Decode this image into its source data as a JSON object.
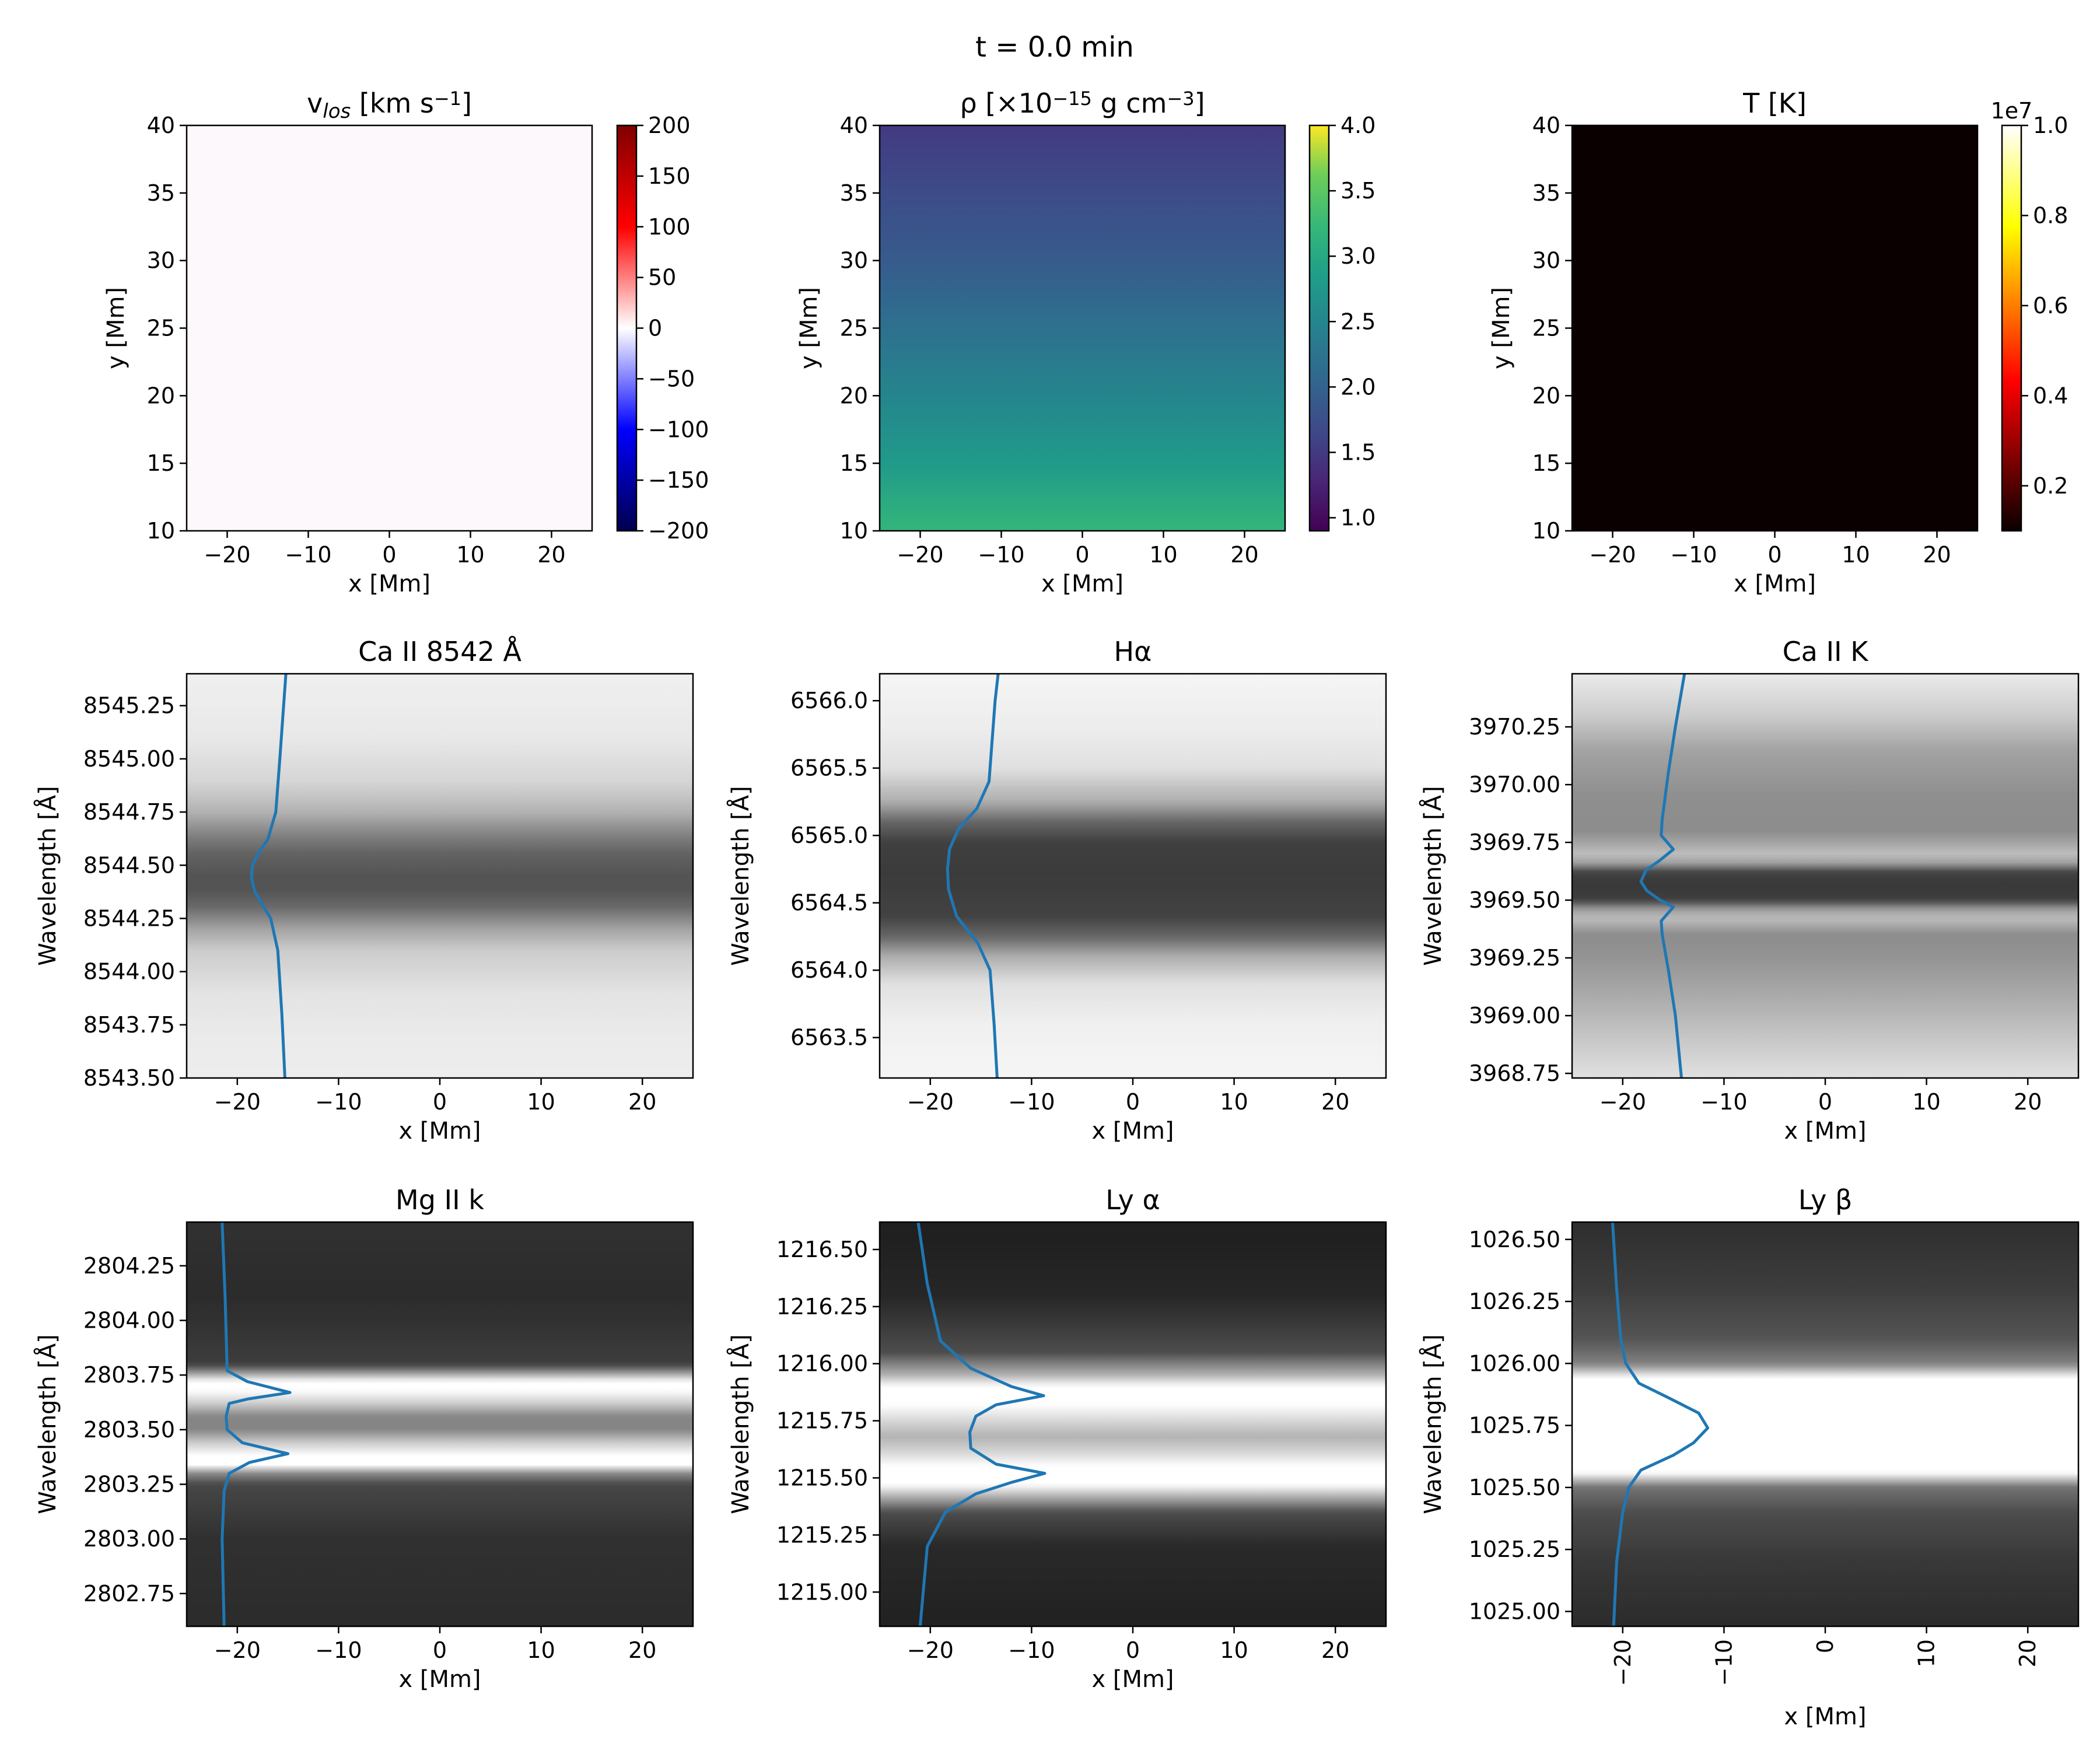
{
  "figure": {
    "suptitle": "t = 0.0 min"
  },
  "colors": {
    "profile_line": "#1f77b4",
    "vlos_field": "#fdf8fb"
  },
  "chart_data": [
    {
      "type": "heatmap",
      "title": "v_los [km s⁻¹]",
      "title_parts": {
        "main": "v",
        "sub": "los",
        "mid": " [km s",
        "sup": "−1",
        "end": "]"
      },
      "xlabel": "x [Mm]",
      "ylabel": "y [Mm]",
      "xlim": [
        -25,
        25
      ],
      "ylim": [
        10,
        40
      ],
      "xticks": [
        -20,
        -10,
        0,
        10,
        20
      ],
      "yticks": [
        10,
        15,
        20,
        25,
        30,
        35,
        40
      ],
      "field": "uniform zero velocity",
      "colorbar": {
        "colormap": "seismic",
        "range": [
          -200,
          200
        ],
        "ticks": [
          -200,
          -150,
          -100,
          -50,
          0,
          50,
          100,
          150,
          200
        ]
      }
    },
    {
      "type": "heatmap",
      "title": "ρ [×10⁻¹⁵ g cm⁻³]",
      "title_parts": {
        "main": "ρ [×10",
        "sup": "−15",
        "mid": " g cm",
        "sup2": "−3",
        "end": "]"
      },
      "xlabel": "x [Mm]",
      "ylabel": "y [Mm]",
      "xlim": [
        -25,
        25
      ],
      "ylim": [
        10,
        40
      ],
      "xticks": [
        -20,
        -10,
        0,
        10,
        20
      ],
      "yticks": [
        10,
        15,
        20,
        25,
        30,
        35,
        40
      ],
      "field": {
        "varies_with": "y",
        "y": [
          10,
          15,
          20,
          25,
          30,
          35,
          40
        ],
        "value": [
          3.2,
          2.8,
          2.5,
          2.2,
          1.9,
          1.7,
          1.5
        ]
      },
      "colorbar": {
        "colormap": "viridis",
        "range": [
          0.9,
          4.0
        ],
        "ticks": [
          1.0,
          1.5,
          2.0,
          2.5,
          3.0,
          3.5,
          4.0
        ]
      }
    },
    {
      "type": "heatmap",
      "title": "T [K]",
      "xlabel": "x [Mm]",
      "ylabel": "y [Mm]",
      "xlim": [
        -25,
        25
      ],
      "ylim": [
        10,
        40
      ],
      "xticks": [
        -20,
        -10,
        0,
        10,
        20
      ],
      "yticks": [
        10,
        15,
        20,
        25,
        30,
        35,
        40
      ],
      "field": "uniform low temperature",
      "colorbar": {
        "colormap": "hot",
        "range": [
          0.1,
          1.0
        ],
        "ticks": [
          0.2,
          0.4,
          0.6,
          0.8,
          1.0
        ],
        "offset_label": "1e7"
      }
    },
    {
      "type": "heatmap",
      "title": "Ca II 8542 Å",
      "xlabel": "x [Mm]",
      "ylabel": "Wavelength [Å]",
      "xlim": [
        -25,
        25
      ],
      "ylim": [
        8543.5,
        8545.4
      ],
      "xticks": [
        -20,
        -10,
        0,
        10,
        20
      ],
      "yticks": [
        8543.5,
        8543.75,
        8544.0,
        8544.25,
        8544.5,
        8544.75,
        8545.0,
        8545.25
      ],
      "ytick_decimals": 2,
      "spectrum": {
        "wavelength": [
          8543.5,
          8543.7,
          8543.9,
          8544.1,
          8544.2,
          8544.3,
          8544.38,
          8544.45,
          8544.55,
          8544.65,
          8544.75,
          8544.9,
          8545.1,
          8545.4
        ],
        "brightness": [
          0.93,
          0.92,
          0.89,
          0.8,
          0.64,
          0.42,
          0.33,
          0.33,
          0.38,
          0.52,
          0.7,
          0.84,
          0.91,
          0.94
        ]
      },
      "profile": {
        "x": [
          -15.3,
          -15.6,
          -16.0,
          -16.7,
          -17.6,
          -18.3,
          -18.6,
          -18.5,
          -17.9,
          -17.0,
          -16.2,
          -15.8,
          -15.5,
          -15.2
        ],
        "wavelength": [
          8543.5,
          8543.8,
          8544.1,
          8544.25,
          8544.32,
          8544.38,
          8544.44,
          8544.5,
          8544.56,
          8544.62,
          8544.75,
          8545.0,
          8545.2,
          8545.4
        ]
      }
    },
    {
      "type": "heatmap",
      "title": "Hα",
      "xlabel": "x [Mm]",
      "ylabel": "Wavelength [Å]",
      "xlim": [
        -25,
        25
      ],
      "ylim": [
        6563.2,
        6566.2
      ],
      "xticks": [
        -20,
        -10,
        0,
        10,
        20
      ],
      "yticks": [
        6563.5,
        6564.0,
        6564.5,
        6565.0,
        6565.5,
        6566.0
      ],
      "ytick_decimals": 1,
      "spectrum": {
        "wavelength": [
          6563.2,
          6563.6,
          6563.9,
          6564.1,
          6564.25,
          6564.4,
          6564.7,
          6564.95,
          6565.1,
          6565.25,
          6565.5,
          6565.8,
          6566.2
        ],
        "brightness": [
          0.96,
          0.94,
          0.88,
          0.68,
          0.4,
          0.26,
          0.23,
          0.25,
          0.4,
          0.68,
          0.88,
          0.93,
          0.96
        ]
      },
      "profile": {
        "x": [
          -13.4,
          -13.7,
          -14.1,
          -15.3,
          -17.4,
          -18.2,
          -18.3,
          -18.1,
          -17.2,
          -15.4,
          -14.2,
          -13.9,
          -13.6,
          -13.3
        ],
        "wavelength": [
          6563.2,
          6563.6,
          6564.0,
          6564.2,
          6564.4,
          6564.6,
          6564.75,
          6564.9,
          6565.05,
          6565.2,
          6565.4,
          6565.7,
          6566.0,
          6566.2
        ]
      }
    },
    {
      "type": "heatmap",
      "title": "Ca II K",
      "xlabel": "x [Mm]",
      "ylabel": "Wavelength [Å]",
      "xlim": [
        -25,
        25
      ],
      "ylim": [
        3968.73,
        3970.48
      ],
      "xticks": [
        -20,
        -10,
        0,
        10,
        20
      ],
      "yticks": [
        3968.75,
        3969.0,
        3969.25,
        3969.5,
        3969.75,
        3970.0,
        3970.25
      ],
      "ytick_decimals": 2,
      "spectrum": {
        "wavelength": [
          3968.73,
          3968.9,
          3969.1,
          3969.25,
          3969.35,
          3969.42,
          3969.46,
          3969.5,
          3969.56,
          3969.62,
          3969.66,
          3969.7,
          3969.8,
          3969.95,
          3970.15,
          3970.3,
          3970.48
        ],
        "brightness": [
          0.88,
          0.78,
          0.66,
          0.58,
          0.55,
          0.74,
          0.62,
          0.25,
          0.22,
          0.25,
          0.62,
          0.74,
          0.55,
          0.56,
          0.64,
          0.8,
          0.92
        ]
      },
      "profile": {
        "x": [
          -14.2,
          -14.8,
          -15.5,
          -16.1,
          -16.2,
          -15.0,
          -16.3,
          -17.6,
          -18.2,
          -17.7,
          -16.4,
          -15.0,
          -16.2,
          -16.1,
          -15.5,
          -14.8,
          -13.9
        ],
        "wavelength": [
          3968.73,
          3969.0,
          3969.2,
          3969.35,
          3969.41,
          3969.47,
          3969.5,
          3969.54,
          3969.58,
          3969.63,
          3969.67,
          3969.72,
          3969.78,
          3969.85,
          3970.05,
          3970.25,
          3970.48
        ]
      }
    },
    {
      "type": "heatmap",
      "title": "Mg II k",
      "xlabel": "x [Mm]",
      "ylabel": "Wavelength [Å]",
      "xlim": [
        -25,
        25
      ],
      "ylim": [
        2802.6,
        2804.45
      ],
      "xticks": [
        -20,
        -10,
        0,
        10,
        20
      ],
      "yticks": [
        2802.75,
        2803.0,
        2803.25,
        2803.5,
        2803.75,
        2804.0,
        2804.25
      ],
      "ytick_decimals": 2,
      "spectrum": {
        "wavelength": [
          2802.6,
          2803.0,
          2803.25,
          2803.3,
          2803.34,
          2803.38,
          2803.44,
          2803.5,
          2803.56,
          2803.62,
          2803.68,
          2803.72,
          2803.76,
          2803.8,
          2804.1,
          2804.45
        ],
        "brightness": [
          0.17,
          0.19,
          0.28,
          0.55,
          1.0,
          1.0,
          0.8,
          0.52,
          0.52,
          0.8,
          1.0,
          1.0,
          0.6,
          0.24,
          0.17,
          0.19
        ]
      },
      "profile": {
        "x": [
          -21.3,
          -21.5,
          -21.3,
          -20.8,
          -18.8,
          -15.0,
          -19.5,
          -21.0,
          -21.1,
          -20.8,
          -19.0,
          -14.8,
          -19.0,
          -21.0,
          -21.2,
          -21.5
        ],
        "wavelength": [
          2802.6,
          2803.0,
          2803.22,
          2803.3,
          2803.35,
          2803.39,
          2803.44,
          2803.5,
          2803.56,
          2803.62,
          2803.64,
          2803.67,
          2803.72,
          2803.77,
          2804.1,
          2804.45
        ]
      }
    },
    {
      "type": "heatmap",
      "title": "Ly α",
      "xlabel": "x [Mm]",
      "ylabel": "Wavelength [Å]",
      "xlim": [
        -25,
        25
      ],
      "ylim": [
        1214.85,
        1216.62
      ],
      "xticks": [
        -20,
        -10,
        0,
        10,
        20
      ],
      "yticks": [
        1215.0,
        1215.25,
        1215.5,
        1215.75,
        1216.0,
        1216.25,
        1216.5
      ],
      "ytick_decimals": 2,
      "spectrum": {
        "wavelength": [
          1214.85,
          1215.2,
          1215.35,
          1215.42,
          1215.47,
          1215.55,
          1215.62,
          1215.68,
          1215.74,
          1215.82,
          1215.9,
          1215.95,
          1216.05,
          1216.3,
          1216.62
        ],
        "brightness": [
          0.13,
          0.16,
          0.3,
          0.7,
          1.0,
          1.0,
          0.82,
          0.7,
          0.82,
          1.0,
          1.0,
          0.7,
          0.3,
          0.15,
          0.12
        ]
      },
      "profile": {
        "x": [
          -21.0,
          -20.3,
          -18.5,
          -15.5,
          -12.0,
          -8.7,
          -13.5,
          -16.0,
          -16.1,
          -15.5,
          -13.5,
          -8.8,
          -12.0,
          -16.0,
          -19.0,
          -20.3,
          -21.2
        ],
        "wavelength": [
          1214.85,
          1215.2,
          1215.35,
          1215.43,
          1215.48,
          1215.52,
          1215.56,
          1215.63,
          1215.7,
          1215.77,
          1215.82,
          1215.86,
          1215.9,
          1215.98,
          1216.1,
          1216.35,
          1216.62
        ]
      }
    },
    {
      "type": "heatmap",
      "title": "Ly β",
      "xlabel": "x [Mm]",
      "ylabel": "Wavelength [Å]",
      "xlim": [
        -25,
        25
      ],
      "ylim": [
        1024.94,
        1026.57
      ],
      "xticks": [
        -20,
        -10,
        0,
        10,
        20
      ],
      "yticks": [
        1025.0,
        1025.25,
        1025.5,
        1025.75,
        1026.0,
        1026.25,
        1026.5
      ],
      "ytick_decimals": 2,
      "xtick_rotation": 90,
      "spectrum": {
        "wavelength": [
          1024.94,
          1025.2,
          1025.4,
          1025.5,
          1025.56,
          1025.62,
          1025.75,
          1025.88,
          1025.94,
          1026.0,
          1026.1,
          1026.3,
          1026.57
        ],
        "brightness": [
          0.17,
          0.22,
          0.3,
          0.45,
          1.0,
          1.0,
          1.0,
          1.0,
          1.0,
          0.5,
          0.33,
          0.24,
          0.18
        ]
      },
      "profile": {
        "x": [
          -20.9,
          -20.6,
          -20.0,
          -19.4,
          -18.2,
          -15.0,
          -13.0,
          -11.6,
          -12.5,
          -15.4,
          -18.4,
          -19.7,
          -20.2,
          -20.6,
          -21.0
        ],
        "wavelength": [
          1024.94,
          1025.2,
          1025.4,
          1025.5,
          1025.57,
          1025.63,
          1025.68,
          1025.74,
          1025.8,
          1025.86,
          1025.92,
          1026.0,
          1026.1,
          1026.3,
          1026.57
        ]
      }
    }
  ]
}
